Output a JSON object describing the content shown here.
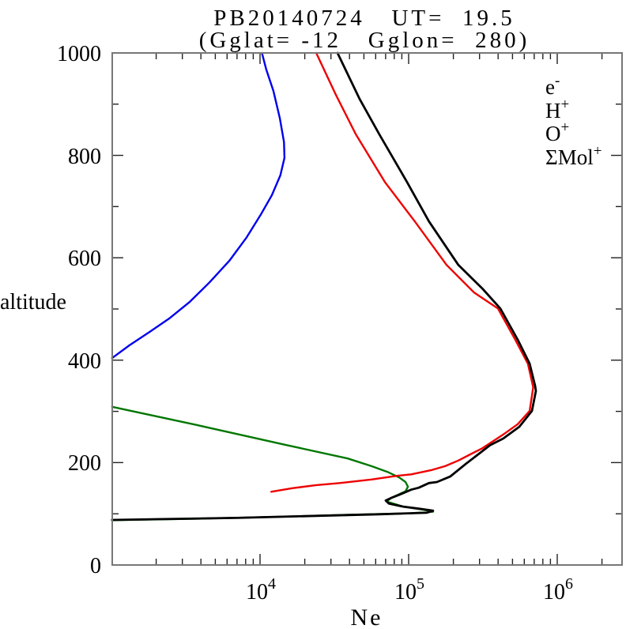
{
  "title": {
    "line1": "PB20140724   UT=  19.5",
    "line2": "(Gglat= -12   Gglon=  280)"
  },
  "axes": {
    "x": {
      "label": "Ne",
      "scale": "log",
      "major_labels": [
        {
          "base": "10",
          "exp": "4"
        },
        {
          "base": "10",
          "exp": "5"
        },
        {
          "base": "10",
          "exp": "6"
        }
      ]
    },
    "y": {
      "label": "altitude",
      "major_ticks": [
        0,
        200,
        400,
        600,
        800,
        1000
      ],
      "minor_ticks": [
        100,
        300,
        500,
        700,
        900
      ]
    }
  },
  "legend": {
    "entries": [
      {
        "label": "e",
        "sup": "-",
        "color": "#000000"
      },
      {
        "label": "H",
        "sup": "+",
        "color": "#0000ee"
      },
      {
        "label": "O",
        "sup": "+",
        "color": "#ee0000"
      },
      {
        "label": "ΣMol",
        "sup": "+",
        "color": "#007700"
      }
    ]
  },
  "chart_data": {
    "type": "line",
    "title": "PB20140724  UT= 19.5 (Gglat= -12  Gglon= 280)",
    "xlabel": "Ne",
    "ylabel": "altitude",
    "x_scale": "log",
    "x_range": [
      1000,
      2730000
    ],
    "y_range": [
      0,
      1000
    ],
    "grid": false,
    "legend_position": "top-right-inside",
    "series": [
      {
        "name": "e-",
        "color": "#000000",
        "points": [
          [
            33200,
            1000
          ],
          [
            46800,
            910
          ],
          [
            63500,
            841
          ],
          [
            97500,
            748
          ],
          [
            137000,
            671
          ],
          [
            216000,
            586
          ],
          [
            313000,
            540
          ],
          [
            414000,
            501
          ],
          [
            542000,
            440
          ],
          [
            652000,
            393
          ],
          [
            710000,
            350
          ],
          [
            718000,
            340
          ],
          [
            676000,
            301
          ],
          [
            556000,
            270
          ],
          [
            434000,
            247
          ],
          [
            353000,
            234
          ],
          [
            294000,
            216
          ],
          [
            244000,
            198
          ],
          [
            191000,
            173
          ],
          [
            155000,
            162
          ],
          [
            137000,
            160
          ],
          [
            117000,
            151
          ],
          [
            104000,
            147
          ],
          [
            86300,
            137
          ],
          [
            76400,
            131
          ],
          [
            70100,
            126
          ],
          [
            73600,
            120
          ],
          [
            91800,
            114
          ],
          [
            117000,
            110
          ],
          [
            146000,
            106
          ],
          [
            132000,
            102
          ],
          [
            63500,
            99
          ],
          [
            23900,
            96
          ],
          [
            7010,
            92
          ],
          [
            2060,
            89.5
          ],
          [
            1010,
            88
          ]
        ]
      },
      {
        "name": "H+",
        "color": "#0000ee",
        "points": [
          [
            1010,
            404
          ],
          [
            1320,
            429
          ],
          [
            1800,
            455
          ],
          [
            2440,
            481
          ],
          [
            3370,
            514
          ],
          [
            4570,
            552
          ],
          [
            6210,
            594
          ],
          [
            8130,
            640
          ],
          [
            10100,
            684
          ],
          [
            12000,
            722
          ],
          [
            13700,
            761
          ],
          [
            14600,
            795
          ],
          [
            14500,
            826
          ],
          [
            13600,
            872
          ],
          [
            12300,
            926
          ],
          [
            11000,
            968
          ],
          [
            10300,
            1000
          ]
        ]
      },
      {
        "name": "O+",
        "color": "#ee0000",
        "points": [
          [
            23900,
            1000
          ],
          [
            32400,
            918
          ],
          [
            44100,
            841
          ],
          [
            69200,
            748
          ],
          [
            110000,
            671
          ],
          [
            180000,
            586
          ],
          [
            276000,
            532
          ],
          [
            399000,
            501
          ],
          [
            522000,
            440
          ],
          [
            635000,
            393
          ],
          [
            689000,
            347
          ],
          [
            652000,
            301
          ],
          [
            542000,
            275
          ],
          [
            434000,
            255
          ],
          [
            313000,
            228
          ],
          [
            260000,
            216
          ],
          [
            216000,
            204
          ],
          [
            176000,
            193
          ],
          [
            141000,
            185
          ],
          [
            104000,
            177
          ],
          [
            83200,
            174
          ],
          [
            56200,
            167
          ],
          [
            34400,
            160
          ],
          [
            23900,
            156
          ],
          [
            16500,
            150
          ],
          [
            11900,
            143
          ]
        ]
      },
      {
        "name": "ΣMol+",
        "color": "#007700",
        "points": [
          [
            1010,
            309
          ],
          [
            3800,
            273
          ],
          [
            14600,
            235
          ],
          [
            38900,
            208
          ],
          [
            56200,
            193
          ],
          [
            71800,
            182
          ],
          [
            86300,
            171
          ],
          [
            95300,
            162
          ],
          [
            98900,
            153
          ],
          [
            95300,
            144
          ],
          [
            76400,
            131
          ],
          [
            70900,
            124
          ],
          [
            91800,
            114
          ],
          [
            124700,
            108
          ],
          [
            146000,
            104
          ],
          [
            104000,
            101
          ],
          [
            38900,
            98
          ],
          [
            12900,
            94
          ],
          [
            3800,
            90.5
          ],
          [
            1010,
            87.5
          ]
        ]
      }
    ]
  }
}
